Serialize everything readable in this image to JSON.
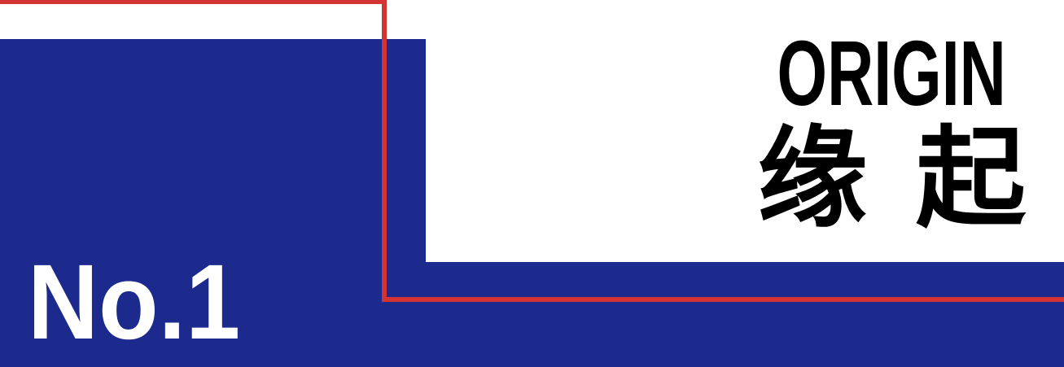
{
  "slide": {
    "section_number": "No.1",
    "title_en": "ORIGIN",
    "title_zh": "缘 起"
  },
  "colors": {
    "blue": "#1b2a8c",
    "red": "#d43431",
    "black": "#000000",
    "white": "#ffffff"
  }
}
